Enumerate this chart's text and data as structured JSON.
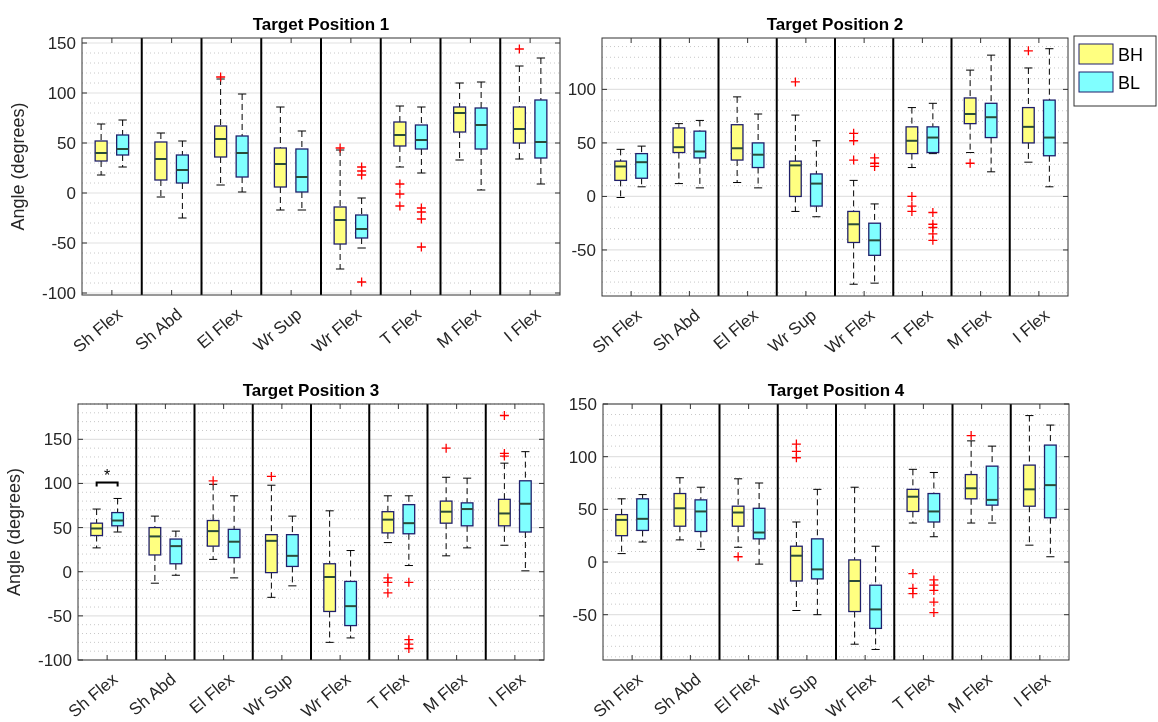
{
  "chart_data": [
    {
      "type": "box",
      "title": "Target Position 1",
      "ylabel": "Angle (degrees)",
      "categories": [
        "Sh Flex",
        "Sh Abd",
        "El Flex",
        "Wr Sup",
        "Wr Flex",
        "T Flex",
        "M Flex",
        "I Flex"
      ],
      "ylim": [
        -102,
        155
      ],
      "yticks": [
        -100,
        -50,
        0,
        50,
        100,
        150
      ],
      "grid": "y",
      "marker": "cross",
      "series": [
        {
          "color": "#ffff80",
          "boxes": [
            {
              "low": 18,
              "q1": 32,
              "median": 40,
              "q3": 52,
              "high": 69
            },
            {
              "low": -4,
              "q1": 13,
              "median": 34,
              "q3": 51,
              "high": 60
            },
            {
              "low": 8,
              "q1": 36,
              "median": 54,
              "q3": 67,
              "high": 114,
              "outliers": [
                116
              ]
            },
            {
              "low": -17,
              "q1": 6,
              "median": 29,
              "q3": 45,
              "high": 86
            },
            {
              "low": -76,
              "q1": -51,
              "median": -27,
              "q3": -14,
              "high": 43,
              "outliers": [
                45
              ]
            },
            {
              "low": 26,
              "q1": 47,
              "median": 58,
              "q3": 71,
              "high": 87,
              "outliers": [
                9,
                -1,
                -13
              ]
            },
            {
              "low": 33,
              "q1": 61,
              "median": 80,
              "q3": 86,
              "high": 110
            },
            {
              "low": 34,
              "q1": 50,
              "median": 64,
              "q3": 86,
              "high": 127,
              "outliers": [
                144
              ]
            }
          ]
        },
        {
          "color": "#80ffff",
          "boxes": [
            {
              "low": 26,
              "q1": 38,
              "median": 44,
              "q3": 58,
              "high": 73
            },
            {
              "low": -25,
              "q1": 10,
              "median": 23,
              "q3": 38,
              "high": 52
            },
            {
              "low": 1,
              "q1": 16,
              "median": 40,
              "q3": 57,
              "high": 99
            },
            {
              "low": -17,
              "q1": 1,
              "median": 16,
              "q3": 44,
              "high": 62
            },
            {
              "low": -55,
              "q1": -45,
              "median": -36,
              "q3": -22,
              "high": -5,
              "outliers": [
                18,
                22,
                26,
                -89
              ]
            },
            {
              "low": 20,
              "q1": 44,
              "median": 53,
              "q3": 68,
              "high": 86,
              "outliers": [
                -15,
                -19,
                -26,
                -54
              ]
            },
            {
              "low": 3,
              "q1": 44,
              "median": 68,
              "q3": 85,
              "high": 111
            },
            {
              "low": 9,
              "q1": 35,
              "median": 51,
              "q3": 93,
              "high": 135
            }
          ]
        }
      ]
    },
    {
      "type": "box",
      "title": "Target Position 2",
      "categories": [
        "Sh Flex",
        "Sh Abd",
        "El Flex",
        "Wr Sup",
        "Wr Flex",
        "T Flex",
        "M Flex",
        "I Flex"
      ],
      "ylim": [
        -93,
        148
      ],
      "yticks": [
        -50,
        0,
        50,
        100
      ],
      "grid": "y",
      "marker": "cross",
      "legend": "top right",
      "series": [
        {
          "name": "BH",
          "color": "#ffff80",
          "boxes": [
            {
              "low": -1,
              "q1": 15,
              "median": 28,
              "q3": 33,
              "high": 44
            },
            {
              "low": 12,
              "q1": 41,
              "median": 46,
              "q3": 64,
              "high": 68
            },
            {
              "low": 13,
              "q1": 34,
              "median": 45,
              "q3": 67,
              "high": 93
            },
            {
              "low": -14,
              "q1": 0,
              "median": 29,
              "q3": 33,
              "high": 76,
              "outliers": [
                107
              ]
            },
            {
              "low": -82,
              "q1": -43,
              "median": -26,
              "q3": -14,
              "high": 15,
              "outliers": [
                59,
                52,
                34
              ]
            },
            {
              "low": 27,
              "q1": 40,
              "median": 52,
              "q3": 65,
              "high": 83,
              "outliers": [
                0,
                -9,
                -14
              ]
            },
            {
              "low": 41,
              "q1": 68,
              "median": 77,
              "q3": 92,
              "high": 118,
              "outliers": [
                31
              ]
            },
            {
              "low": 32,
              "q1": 50,
              "median": 65,
              "q3": 83,
              "high": 120,
              "outliers": [
                136
              ]
            }
          ]
        },
        {
          "name": "BL",
          "color": "#80ffff",
          "boxes": [
            {
              "low": 9,
              "q1": 17,
              "median": 32,
              "q3": 40,
              "high": 47
            },
            {
              "low": 8,
              "q1": 36,
              "median": 42,
              "q3": 61,
              "high": 71
            },
            {
              "low": 8,
              "q1": 27,
              "median": 39,
              "q3": 50,
              "high": 77
            },
            {
              "low": -19,
              "q1": -9,
              "median": 12,
              "q3": 21,
              "high": 52
            },
            {
              "low": -81,
              "q1": -55,
              "median": -41,
              "q3": -25,
              "high": -7,
              "outliers": [
                36,
                31,
                28
              ]
            },
            {
              "low": 40,
              "q1": 41,
              "median": 55,
              "q3": 65,
              "high": 87,
              "outliers": [
                -15,
                -26,
                -29,
                -35,
                -41
              ]
            },
            {
              "low": 23,
              "q1": 55,
              "median": 74,
              "q3": 87,
              "high": 132
            },
            {
              "low": 9,
              "q1": 38,
              "median": 55,
              "q3": 90,
              "high": 138
            }
          ]
        }
      ]
    },
    {
      "type": "box",
      "title": "Target Position 3",
      "ylabel": "Angle (degrees)",
      "categories": [
        "Sh Flex",
        "Sh Abd",
        "El Flex",
        "Wr Sup",
        "Wr Flex",
        "T Flex",
        "M Flex",
        "I Flex"
      ],
      "ylim": [
        -100,
        190
      ],
      "yticks": [
        -100,
        -50,
        0,
        50,
        100,
        150
      ],
      "grid": "y",
      "marker": "cross",
      "annotations": [
        "*"
      ],
      "series": [
        {
          "color": "#ffff80",
          "boxes": [
            {
              "low": 27,
              "q1": 41,
              "median": 49,
              "q3": 55,
              "high": 71
            },
            {
              "low": -13,
              "q1": 19,
              "median": 40,
              "q3": 50,
              "high": 63
            },
            {
              "low": 14,
              "q1": 29,
              "median": 46,
              "q3": 58,
              "high": 99,
              "outliers": [
                103
              ]
            },
            {
              "low": -29,
              "q1": -1,
              "median": 35,
              "q3": 42,
              "high": 98,
              "outliers": [
                108
              ]
            },
            {
              "low": -80,
              "q1": -45,
              "median": -6,
              "q3": 9,
              "high": 69
            },
            {
              "low": 33,
              "q1": 44,
              "median": 59,
              "q3": 68,
              "high": 86,
              "outliers": [
                -7,
                -12,
                -24
              ]
            },
            {
              "low": 18,
              "q1": 55,
              "median": 68,
              "q3": 80,
              "high": 107,
              "outliers": [
                140
              ]
            },
            {
              "low": 30,
              "q1": 52,
              "median": 66,
              "q3": 82,
              "high": 123,
              "outliers": [
                177,
                134,
                131
              ]
            }
          ]
        },
        {
          "color": "#80ffff",
          "boxes": [
            {
              "low": 45,
              "q1": 52,
              "median": 58,
              "q3": 67,
              "high": 83
            },
            {
              "low": -4,
              "q1": 9,
              "median": 29,
              "q3": 37,
              "high": 46
            },
            {
              "low": -7,
              "q1": 16,
              "median": 34,
              "q3": 48,
              "high": 86
            },
            {
              "low": -16,
              "q1": 6,
              "median": 18,
              "q3": 42,
              "high": 63
            },
            {
              "low": -75,
              "q1": -61,
              "median": -39,
              "q3": -11,
              "high": 24
            },
            {
              "low": 7,
              "q1": 43,
              "median": 55,
              "q3": 76,
              "high": 86,
              "outliers": [
                -12,
                -77,
                -82,
                -87
              ]
            },
            {
              "low": 27,
              "q1": 52,
              "median": 71,
              "q3": 78,
              "high": 106
            },
            {
              "low": 1,
              "q1": 45,
              "median": 77,
              "q3": 103,
              "high": 136
            }
          ]
        }
      ]
    },
    {
      "type": "box",
      "title": "Target Position 4",
      "categories": [
        "Sh Flex",
        "Sh Abd",
        "El Flex",
        "Wr Sup",
        "Wr Flex",
        "T Flex",
        "M Flex",
        "I Flex"
      ],
      "ylim": [
        -93,
        150
      ],
      "yticks": [
        -50,
        0,
        50,
        100,
        150
      ],
      "grid": "y",
      "marker": "cross",
      "series": [
        {
          "color": "#ffff80",
          "boxes": [
            {
              "low": 8,
              "q1": 25,
              "median": 40,
              "q3": 45,
              "high": 60
            },
            {
              "low": 21,
              "q1": 34,
              "median": 51,
              "q3": 65,
              "high": 80
            },
            {
              "low": 14,
              "q1": 34,
              "median": 47,
              "q3": 53,
              "high": 79,
              "outliers": [
                5
              ]
            },
            {
              "low": -46,
              "q1": -18,
              "median": 6,
              "q3": 15,
              "high": 38,
              "outliers": [
                112,
                105,
                99
              ]
            },
            {
              "low": -78,
              "q1": -47,
              "median": -18,
              "q3": 2,
              "high": 71
            },
            {
              "low": 37,
              "q1": 48,
              "median": 62,
              "q3": 69,
              "high": 88,
              "outliers": [
                -11,
                -25,
                -30
              ]
            },
            {
              "low": 37,
              "q1": 60,
              "median": 70,
              "q3": 83,
              "high": 115,
              "outliers": [
                120
              ]
            },
            {
              "low": 16,
              "q1": 53,
              "median": 69,
              "q3": 92,
              "high": 139
            }
          ]
        },
        {
          "color": "#80ffff",
          "boxes": [
            {
              "low": 19,
              "q1": 30,
              "median": 41,
              "q3": 60,
              "high": 64
            },
            {
              "low": 12,
              "q1": 29,
              "median": 48,
              "q3": 59,
              "high": 71
            },
            {
              "low": -2,
              "q1": 22,
              "median": 28,
              "q3": 51,
              "high": 75
            },
            {
              "low": -50,
              "q1": -16,
              "median": -7,
              "q3": 22,
              "high": 69
            },
            {
              "low": -83,
              "q1": -63,
              "median": -45,
              "q3": -22,
              "high": 15
            },
            {
              "low": 24,
              "q1": 38,
              "median": 48,
              "q3": 65,
              "high": 85,
              "outliers": [
                -17,
                -22,
                -27,
                -38,
                -48
              ]
            },
            {
              "low": 37,
              "q1": 54,
              "median": 59,
              "q3": 91,
              "high": 110
            },
            {
              "low": 5,
              "q1": 42,
              "median": 73,
              "q3": 111,
              "high": 130
            }
          ]
        }
      ]
    }
  ]
}
